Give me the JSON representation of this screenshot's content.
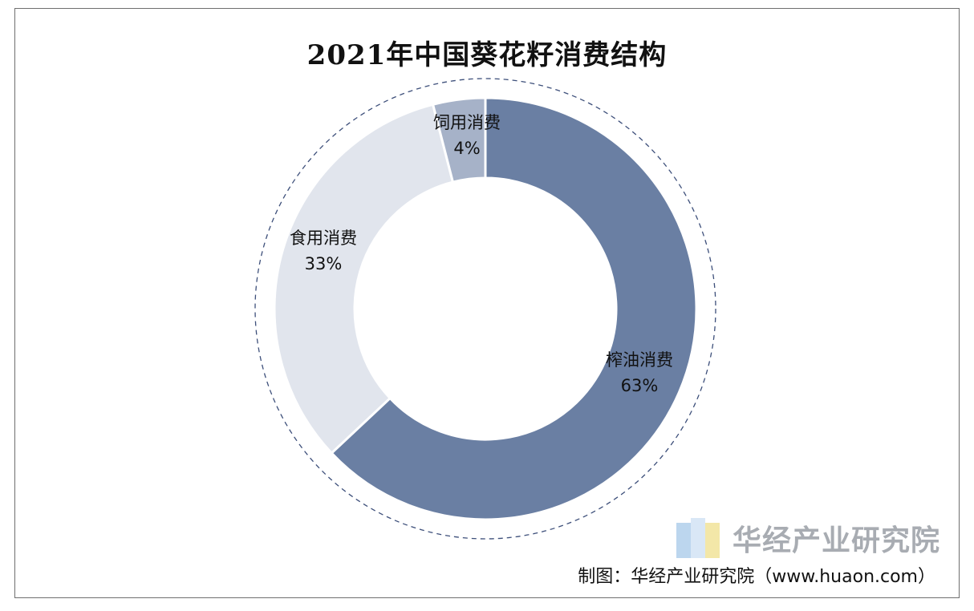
{
  "chart_data": {
    "type": "pie",
    "title": "2021年中国葵花籽消费结构",
    "slices": [
      {
        "label": "榨油消费",
        "value": 63,
        "value_label": "63%",
        "color": "#6a7fa3"
      },
      {
        "label": "食用消费",
        "value": 33,
        "value_label": "33%",
        "color": "#e1e5ed"
      },
      {
        "label": "饲用消费",
        "value": 4,
        "value_label": "4%",
        "color": "#a6b2c8"
      }
    ]
  },
  "watermark": {
    "text": "华经产业研究院"
  },
  "source": {
    "text": "制图：华经产业研究院（www.huaon.com）"
  }
}
